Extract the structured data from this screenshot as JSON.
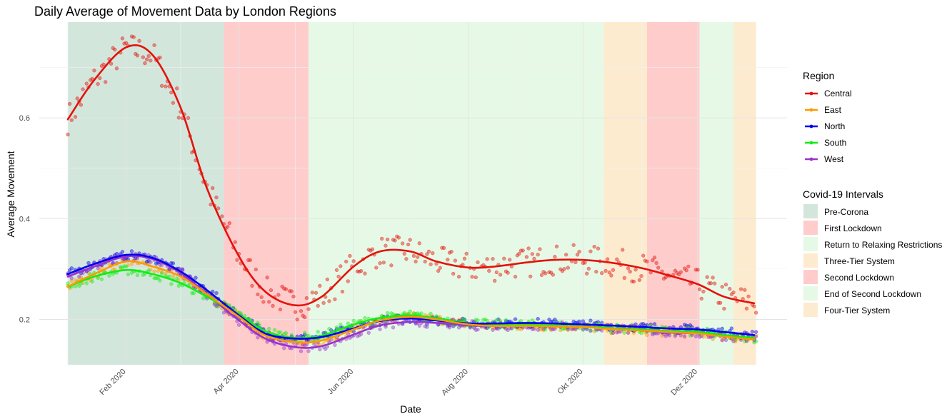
{
  "chart_data": {
    "type": "line",
    "title": "Daily Average of Movement Data by London Regions",
    "xlabel": "Date",
    "ylabel": "Average Movement",
    "x_ticks": [
      {
        "date": "2020-02-01",
        "label": "Feb 2020"
      },
      {
        "date": "2020-04-01",
        "label": "Apr 2020"
      },
      {
        "date": "2020-06-01",
        "label": "Jun 2020"
      },
      {
        "date": "2020-08-01",
        "label": "Aug 2020"
      },
      {
        "date": "2020-10-01",
        "label": "Okt 2020"
      },
      {
        "date": "2020-12-01",
        "label": "Dez 2020"
      }
    ],
    "y_ticks": [
      0.2,
      0.4,
      0.6
    ],
    "xlim": [
      "2020-01-01",
      "2020-12-31"
    ],
    "ylim": [
      0.11,
      0.79
    ],
    "grid": true,
    "legend_position": "right",
    "legend_region_title": "Region",
    "legend_interval_title": "Covid-19 Intervals",
    "series": [
      {
        "name": "Central",
        "color": "#e3120b",
        "trend": [
          [
            "2020-01-01",
            0.597
          ],
          [
            "2020-01-15",
            0.675
          ],
          [
            "2020-02-01",
            0.74
          ],
          [
            "2020-02-15",
            0.725
          ],
          [
            "2020-03-01",
            0.62
          ],
          [
            "2020-03-15",
            0.46
          ],
          [
            "2020-04-01",
            0.325
          ],
          [
            "2020-04-15",
            0.255
          ],
          [
            "2020-05-01",
            0.228
          ],
          [
            "2020-05-15",
            0.245
          ],
          [
            "2020-06-01",
            0.305
          ],
          [
            "2020-06-15",
            0.335
          ],
          [
            "2020-07-01",
            0.335
          ],
          [
            "2020-07-15",
            0.315
          ],
          [
            "2020-08-01",
            0.303
          ],
          [
            "2020-08-15",
            0.305
          ],
          [
            "2020-09-01",
            0.313
          ],
          [
            "2020-09-15",
            0.318
          ],
          [
            "2020-10-01",
            0.318
          ],
          [
            "2020-10-15",
            0.313
          ],
          [
            "2020-11-01",
            0.302
          ],
          [
            "2020-11-15",
            0.288
          ],
          [
            "2020-12-01",
            0.27
          ],
          [
            "2020-12-15",
            0.245
          ],
          [
            "2020-12-31",
            0.232
          ]
        ]
      },
      {
        "name": "East",
        "color": "#ff9900",
        "trend": [
          [
            "2020-01-01",
            0.265
          ],
          [
            "2020-01-15",
            0.29
          ],
          [
            "2020-02-01",
            0.315
          ],
          [
            "2020-02-15",
            0.305
          ],
          [
            "2020-03-01",
            0.285
          ],
          [
            "2020-03-15",
            0.25
          ],
          [
            "2020-04-01",
            0.205
          ],
          [
            "2020-04-15",
            0.168
          ],
          [
            "2020-05-01",
            0.155
          ],
          [
            "2020-05-15",
            0.158
          ],
          [
            "2020-06-01",
            0.18
          ],
          [
            "2020-06-15",
            0.198
          ],
          [
            "2020-07-01",
            0.205
          ],
          [
            "2020-07-15",
            0.2
          ],
          [
            "2020-08-01",
            0.19
          ],
          [
            "2020-08-15",
            0.187
          ],
          [
            "2020-09-01",
            0.187
          ],
          [
            "2020-09-15",
            0.186
          ],
          [
            "2020-10-01",
            0.185
          ],
          [
            "2020-10-15",
            0.181
          ],
          [
            "2020-11-01",
            0.178
          ],
          [
            "2020-11-15",
            0.175
          ],
          [
            "2020-12-01",
            0.172
          ],
          [
            "2020-12-15",
            0.166
          ],
          [
            "2020-12-31",
            0.16
          ]
        ]
      },
      {
        "name": "North",
        "color": "#0000ee",
        "trend": [
          [
            "2020-01-01",
            0.29
          ],
          [
            "2020-01-15",
            0.31
          ],
          [
            "2020-02-01",
            0.328
          ],
          [
            "2020-02-15",
            0.322
          ],
          [
            "2020-03-01",
            0.295
          ],
          [
            "2020-03-15",
            0.258
          ],
          [
            "2020-04-01",
            0.208
          ],
          [
            "2020-04-15",
            0.172
          ],
          [
            "2020-05-01",
            0.162
          ],
          [
            "2020-05-15",
            0.165
          ],
          [
            "2020-06-01",
            0.182
          ],
          [
            "2020-06-15",
            0.197
          ],
          [
            "2020-07-01",
            0.202
          ],
          [
            "2020-07-15",
            0.198
          ],
          [
            "2020-08-01",
            0.192
          ],
          [
            "2020-08-15",
            0.192
          ],
          [
            "2020-09-01",
            0.193
          ],
          [
            "2020-09-15",
            0.192
          ],
          [
            "2020-10-01",
            0.19
          ],
          [
            "2020-10-15",
            0.188
          ],
          [
            "2020-11-01",
            0.185
          ],
          [
            "2020-11-15",
            0.182
          ],
          [
            "2020-12-01",
            0.18
          ],
          [
            "2020-12-15",
            0.175
          ],
          [
            "2020-12-31",
            0.169
          ]
        ]
      },
      {
        "name": "South",
        "color": "#11ee11",
        "trend": [
          [
            "2020-01-01",
            0.265
          ],
          [
            "2020-01-15",
            0.285
          ],
          [
            "2020-02-01",
            0.298
          ],
          [
            "2020-02-15",
            0.29
          ],
          [
            "2020-03-01",
            0.272
          ],
          [
            "2020-03-15",
            0.245
          ],
          [
            "2020-04-01",
            0.21
          ],
          [
            "2020-04-15",
            0.177
          ],
          [
            "2020-05-01",
            0.163
          ],
          [
            "2020-05-15",
            0.168
          ],
          [
            "2020-06-01",
            0.19
          ],
          [
            "2020-06-15",
            0.203
          ],
          [
            "2020-07-01",
            0.208
          ],
          [
            "2020-07-15",
            0.202
          ],
          [
            "2020-08-01",
            0.193
          ],
          [
            "2020-08-15",
            0.19
          ],
          [
            "2020-09-01",
            0.19
          ],
          [
            "2020-09-15",
            0.188
          ],
          [
            "2020-10-01",
            0.186
          ],
          [
            "2020-10-15",
            0.183
          ],
          [
            "2020-11-01",
            0.18
          ],
          [
            "2020-11-15",
            0.177
          ],
          [
            "2020-12-01",
            0.175
          ],
          [
            "2020-12-15",
            0.169
          ],
          [
            "2020-12-31",
            0.163
          ]
        ]
      },
      {
        "name": "West",
        "color": "#9933cc",
        "trend": [
          [
            "2020-01-01",
            0.285
          ],
          [
            "2020-01-15",
            0.305
          ],
          [
            "2020-02-01",
            0.325
          ],
          [
            "2020-02-15",
            0.32
          ],
          [
            "2020-03-01",
            0.292
          ],
          [
            "2020-03-15",
            0.25
          ],
          [
            "2020-04-01",
            0.198
          ],
          [
            "2020-04-15",
            0.162
          ],
          [
            "2020-05-01",
            0.145
          ],
          [
            "2020-05-15",
            0.147
          ],
          [
            "2020-06-01",
            0.17
          ],
          [
            "2020-06-15",
            0.188
          ],
          [
            "2020-07-01",
            0.195
          ],
          [
            "2020-07-15",
            0.193
          ],
          [
            "2020-08-01",
            0.188
          ],
          [
            "2020-08-15",
            0.187
          ],
          [
            "2020-09-01",
            0.188
          ],
          [
            "2020-09-15",
            0.187
          ],
          [
            "2020-10-01",
            0.186
          ],
          [
            "2020-10-15",
            0.182
          ],
          [
            "2020-11-01",
            0.178
          ],
          [
            "2020-11-15",
            0.174
          ],
          [
            "2020-12-01",
            0.172
          ],
          [
            "2020-12-15",
            0.167
          ],
          [
            "2020-12-31",
            0.162
          ]
        ]
      }
    ],
    "intervals": [
      {
        "name": "Pre-Corona",
        "start": "2020-01-01",
        "end": "2020-03-23",
        "color": "#d3e6dc"
      },
      {
        "name": "First Lockdown",
        "start": "2020-03-24",
        "end": "2020-05-07",
        "color": "#ffcccc"
      },
      {
        "name": "Return to Relaxing Restrictions",
        "start": "2020-05-08",
        "end": "2020-10-11",
        "color": "#e6f9e6"
      },
      {
        "name": "Three-Tier System",
        "start": "2020-10-12",
        "end": "2020-11-03",
        "color": "#fdebd0"
      },
      {
        "name": "Second Lockdown",
        "start": "2020-11-04",
        "end": "2020-12-01",
        "color": "#ffcccc"
      },
      {
        "name": "End of Second Lockdown",
        "start": "2020-12-02",
        "end": "2020-12-19",
        "color": "#e6f9e6"
      },
      {
        "name": "Four-Tier System",
        "start": "2020-12-20",
        "end": "2020-12-31",
        "color": "#fdebd0"
      }
    ]
  }
}
